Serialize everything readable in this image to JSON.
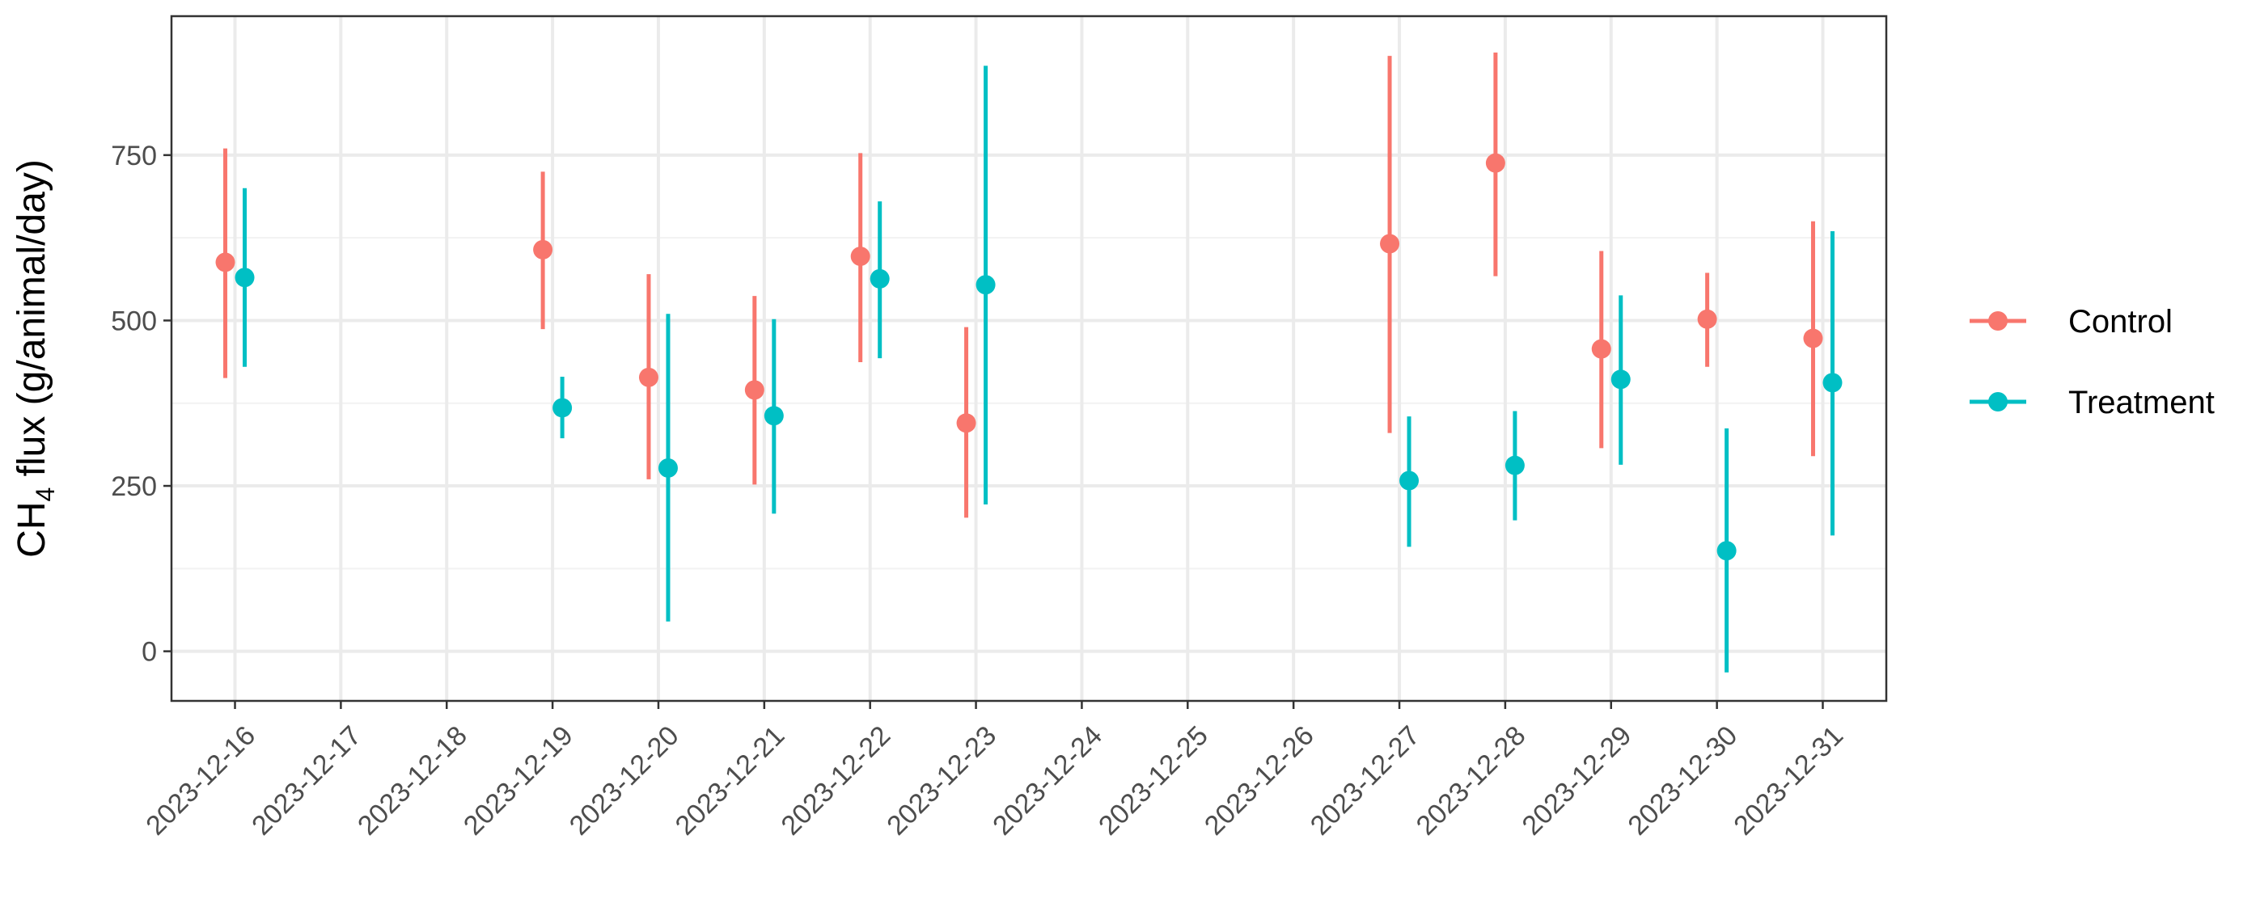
{
  "chart_data": {
    "type": "scatter",
    "title": "",
    "xlabel": "",
    "ylabel": {
      "prefix": "CH",
      "subscript": "4",
      "suffix": " flux (g/animal/day)"
    },
    "x_categories": [
      "2023-12-16",
      "2023-12-17",
      "2023-12-18",
      "2023-12-19",
      "2023-12-20",
      "2023-12-21",
      "2023-12-22",
      "2023-12-23",
      "2023-12-24",
      "2023-12-25",
      "2023-12-26",
      "2023-12-27",
      "2023-12-28",
      "2023-12-29",
      "2023-12-30",
      "2023-12-31"
    ],
    "ylim": [
      -75,
      960
    ],
    "yticks": [
      0,
      250,
      500,
      750
    ],
    "ytick_labels": [
      "0",
      "250",
      "500",
      "750"
    ],
    "grid": true,
    "legend_position": "right",
    "series": [
      {
        "name": "Control",
        "color": "#F8766D",
        "points": [
          {
            "x": "2023-12-16",
            "y": 588,
            "ymin": 413,
            "ymax": 760
          },
          {
            "x": "2023-12-19",
            "y": 607,
            "ymin": 487,
            "ymax": 725
          },
          {
            "x": "2023-12-20",
            "y": 414,
            "ymin": 260,
            "ymax": 570
          },
          {
            "x": "2023-12-21",
            "y": 395,
            "ymin": 252,
            "ymax": 537
          },
          {
            "x": "2023-12-22",
            "y": 597,
            "ymin": 437,
            "ymax": 753
          },
          {
            "x": "2023-12-23",
            "y": 345,
            "ymin": 202,
            "ymax": 490
          },
          {
            "x": "2023-12-27",
            "y": 616,
            "ymin": 330,
            "ymax": 900
          },
          {
            "x": "2023-12-28",
            "y": 738,
            "ymin": 567,
            "ymax": 905
          },
          {
            "x": "2023-12-29",
            "y": 457,
            "ymin": 307,
            "ymax": 605
          },
          {
            "x": "2023-12-30",
            "y": 502,
            "ymin": 430,
            "ymax": 572
          },
          {
            "x": "2023-12-31",
            "y": 473,
            "ymin": 295,
            "ymax": 650
          }
        ]
      },
      {
        "name": "Treatment",
        "color": "#00BFC4",
        "points": [
          {
            "x": "2023-12-16",
            "y": 565,
            "ymin": 430,
            "ymax": 700
          },
          {
            "x": "2023-12-19",
            "y": 368,
            "ymin": 322,
            "ymax": 415
          },
          {
            "x": "2023-12-20",
            "y": 277,
            "ymin": 45,
            "ymax": 510
          },
          {
            "x": "2023-12-21",
            "y": 356,
            "ymin": 208,
            "ymax": 502
          },
          {
            "x": "2023-12-22",
            "y": 563,
            "ymin": 443,
            "ymax": 680
          },
          {
            "x": "2023-12-23",
            "y": 554,
            "ymin": 222,
            "ymax": 885
          },
          {
            "x": "2023-12-27",
            "y": 258,
            "ymin": 158,
            "ymax": 355
          },
          {
            "x": "2023-12-28",
            "y": 281,
            "ymin": 198,
            "ymax": 363
          },
          {
            "x": "2023-12-29",
            "y": 411,
            "ymin": 282,
            "ymax": 538
          },
          {
            "x": "2023-12-30",
            "y": 152,
            "ymin": -32,
            "ymax": 337
          },
          {
            "x": "2023-12-31",
            "y": 406,
            "ymin": 175,
            "ymax": 635
          }
        ]
      }
    ]
  }
}
